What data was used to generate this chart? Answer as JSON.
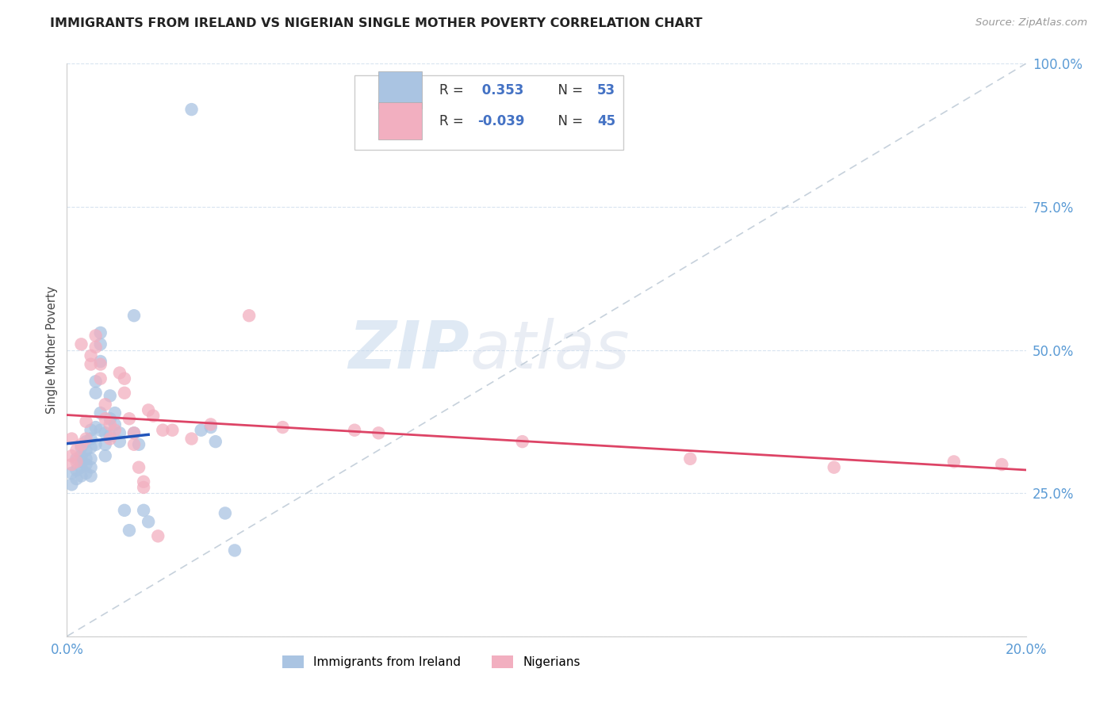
{
  "title": "IMMIGRANTS FROM IRELAND VS NIGERIAN SINGLE MOTHER POVERTY CORRELATION CHART",
  "source": "Source: ZipAtlas.com",
  "ylabel": "Single Mother Poverty",
  "xlim": [
    0,
    0.2
  ],
  "ylim": [
    0,
    1.0
  ],
  "xticks": [
    0.0,
    0.05,
    0.1,
    0.15,
    0.2
  ],
  "xticklabels": [
    "0.0%",
    "",
    "",
    "",
    "20.0%"
  ],
  "yticks": [
    0.0,
    0.25,
    0.5,
    0.75,
    1.0
  ],
  "yticklabels": [
    "",
    "25.0%",
    "50.0%",
    "75.0%",
    "100.0%"
  ],
  "blue_color": "#aac4e2",
  "pink_color": "#f2afc0",
  "blue_line_color": "#2255bb",
  "pink_line_color": "#dd4466",
  "diag_line_color": "#c0ccd8",
  "watermark_zip": "ZIP",
  "watermark_atlas": "atlas",
  "legend_R1": "R =  0.353",
  "legend_N1": "N = 53",
  "legend_R2": "R = -0.039",
  "legend_N2": "N = 45",
  "legend_text_color": "#333333",
  "legend_val_color": "#4472c4",
  "tick_color": "#5b9bd5",
  "ireland_x": [
    0.001,
    0.001,
    0.002,
    0.002,
    0.002,
    0.003,
    0.003,
    0.003,
    0.003,
    0.003,
    0.004,
    0.004,
    0.004,
    0.004,
    0.004,
    0.005,
    0.005,
    0.005,
    0.005,
    0.005,
    0.005,
    0.006,
    0.006,
    0.006,
    0.006,
    0.007,
    0.007,
    0.007,
    0.007,
    0.007,
    0.008,
    0.008,
    0.008,
    0.009,
    0.009,
    0.009,
    0.01,
    0.01,
    0.011,
    0.011,
    0.012,
    0.013,
    0.014,
    0.014,
    0.015,
    0.016,
    0.017,
    0.026,
    0.03,
    0.031,
    0.033,
    0.035,
    0.028
  ],
  "ireland_y": [
    0.265,
    0.285,
    0.31,
    0.29,
    0.275,
    0.33,
    0.315,
    0.305,
    0.295,
    0.28,
    0.34,
    0.325,
    0.31,
    0.3,
    0.285,
    0.36,
    0.345,
    0.33,
    0.31,
    0.295,
    0.28,
    0.445,
    0.425,
    0.365,
    0.335,
    0.53,
    0.51,
    0.48,
    0.39,
    0.36,
    0.355,
    0.335,
    0.315,
    0.42,
    0.38,
    0.35,
    0.39,
    0.37,
    0.355,
    0.34,
    0.22,
    0.185,
    0.56,
    0.355,
    0.335,
    0.22,
    0.2,
    0.92,
    0.365,
    0.34,
    0.215,
    0.15,
    0.36
  ],
  "nigerian_x": [
    0.001,
    0.001,
    0.001,
    0.002,
    0.002,
    0.003,
    0.003,
    0.004,
    0.004,
    0.005,
    0.005,
    0.006,
    0.006,
    0.007,
    0.007,
    0.008,
    0.008,
    0.009,
    0.009,
    0.01,
    0.011,
    0.012,
    0.012,
    0.013,
    0.014,
    0.014,
    0.015,
    0.016,
    0.016,
    0.017,
    0.018,
    0.019,
    0.02,
    0.022,
    0.026,
    0.03,
    0.038,
    0.045,
    0.06,
    0.065,
    0.095,
    0.13,
    0.16,
    0.185,
    0.195
  ],
  "nigerian_y": [
    0.345,
    0.315,
    0.3,
    0.325,
    0.305,
    0.51,
    0.335,
    0.375,
    0.345,
    0.49,
    0.475,
    0.525,
    0.505,
    0.475,
    0.45,
    0.405,
    0.38,
    0.37,
    0.345,
    0.36,
    0.46,
    0.45,
    0.425,
    0.38,
    0.355,
    0.335,
    0.295,
    0.27,
    0.26,
    0.395,
    0.385,
    0.175,
    0.36,
    0.36,
    0.345,
    0.37,
    0.56,
    0.365,
    0.36,
    0.355,
    0.34,
    0.31,
    0.295,
    0.305,
    0.3
  ]
}
